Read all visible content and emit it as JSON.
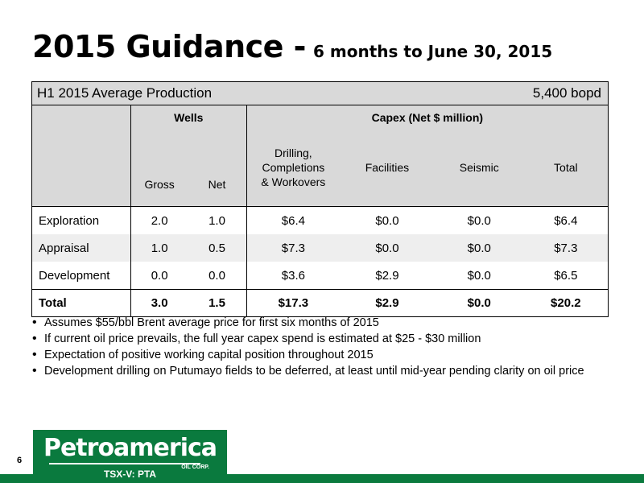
{
  "title": {
    "main": "2015 Guidance -",
    "sub": "6 months to June 30, 2015"
  },
  "table": {
    "production_label": "H1 2015 Average Production",
    "production_value": "5,400 bopd",
    "group_wells": "Wells",
    "group_capex": "Capex (Net $ million)",
    "col_gross": "Gross",
    "col_net": "Net",
    "col_drilling": [
      "Drilling,",
      "Completions",
      "& Workovers"
    ],
    "col_facilities": "Facilities",
    "col_seismic": "Seismic",
    "col_total": "Total",
    "rows": [
      {
        "label": "Exploration",
        "gross": "2.0",
        "net": "1.0",
        "drilling": "$6.4",
        "facilities": "$0.0",
        "seismic": "$0.0",
        "total": "$6.4"
      },
      {
        "label": "Appraisal",
        "gross": "1.0",
        "net": "0.5",
        "drilling": "$7.3",
        "facilities": "$0.0",
        "seismic": "$0.0",
        "total": "$7.3"
      },
      {
        "label": "Development",
        "gross": "0.0",
        "net": "0.0",
        "drilling": "$3.6",
        "facilities": "$2.9",
        "seismic": "$0.0",
        "total": "$6.5"
      }
    ],
    "total_row": {
      "label": "Total",
      "gross": "3.0",
      "net": "1.5",
      "drilling": "$17.3",
      "facilities": "$2.9",
      "seismic": "$0.0",
      "total": "$20.2"
    }
  },
  "bullets": [
    "Assumes $55/bbl Brent average price for first six months of 2015",
    "If current oil price prevails, the full year capex spend is estimated at $25 - $30 million",
    "Expectation of positive working capital position throughout 2015",
    "Development drilling on Putumayo fields to be deferred, at least until mid-year pending clarity on oil price"
  ],
  "footer": {
    "page_number": "6",
    "logo_name": "Petroamerica",
    "logo_corp": "OIL CORP.",
    "ticker": "TSX-V: PTA"
  },
  "colors": {
    "brand_green": "#0a7a3e",
    "header_gray": "#d9d9d9",
    "row_shade": "#eeeeee"
  }
}
